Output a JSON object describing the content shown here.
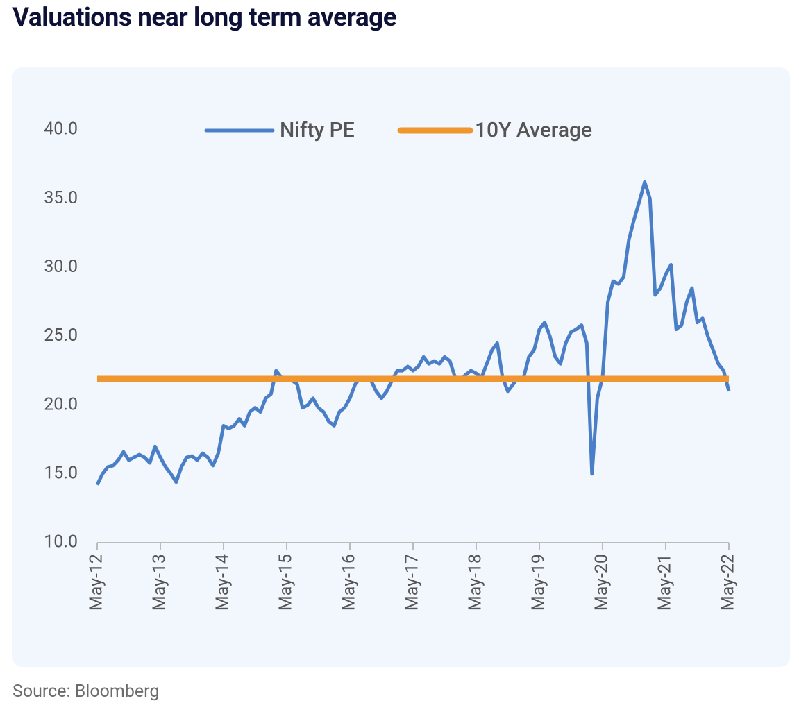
{
  "chart_data": {
    "type": "line",
    "title": "Valuations near long term average",
    "source": "Source: Bloomberg",
    "categories": [
      "May-12",
      null,
      null,
      null,
      null,
      null,
      null,
      null,
      null,
      null,
      null,
      null,
      "May-13",
      null,
      null,
      null,
      null,
      null,
      null,
      null,
      null,
      null,
      null,
      null,
      "May-14",
      null,
      null,
      null,
      null,
      null,
      null,
      null,
      null,
      null,
      null,
      null,
      "May-15",
      null,
      null,
      null,
      null,
      null,
      null,
      null,
      null,
      null,
      null,
      null,
      "May-16",
      null,
      null,
      null,
      null,
      null,
      null,
      null,
      null,
      null,
      null,
      null,
      "May-17",
      null,
      null,
      null,
      null,
      null,
      null,
      null,
      null,
      null,
      null,
      null,
      "May-18",
      null,
      null,
      null,
      null,
      null,
      null,
      null,
      null,
      null,
      null,
      null,
      "May-19",
      null,
      null,
      null,
      null,
      null,
      null,
      null,
      null,
      null,
      null,
      null,
      "May-20",
      null,
      null,
      null,
      null,
      null,
      null,
      null,
      null,
      null,
      null,
      null,
      "May-21",
      null,
      null,
      null,
      null,
      null,
      null,
      null,
      null,
      null,
      null,
      null,
      "May-22"
    ],
    "series": [
      {
        "name": "Nifty PE",
        "color": "#4a7fc7",
        "values": [
          14.2,
          15.0,
          15.5,
          15.6,
          16.0,
          16.6,
          16.0,
          16.2,
          16.4,
          16.2,
          15.8,
          17.0,
          16.2,
          15.5,
          15.0,
          14.4,
          15.5,
          16.2,
          16.3,
          16.0,
          16.5,
          16.2,
          15.6,
          16.5,
          18.5,
          18.3,
          18.5,
          19.0,
          18.5,
          19.5,
          19.8,
          19.5,
          20.5,
          20.8,
          22.5,
          22.0,
          22.0,
          21.8,
          21.5,
          19.8,
          20.0,
          20.5,
          19.8,
          19.5,
          18.8,
          18.5,
          19.5,
          19.8,
          20.5,
          21.5,
          22.0,
          22.0,
          21.8,
          21.0,
          20.5,
          21.0,
          21.8,
          22.5,
          22.5,
          22.8,
          22.5,
          22.8,
          23.5,
          23.0,
          23.2,
          23.0,
          23.5,
          23.2,
          22.0,
          21.8,
          22.2,
          22.5,
          22.3,
          22.0,
          23.0,
          24.0,
          24.5,
          22.0,
          21.0,
          21.5,
          22.0,
          22.0,
          23.5,
          24.0,
          25.5,
          26.0,
          25.0,
          23.5,
          23.0,
          24.5,
          25.3,
          25.5,
          25.8,
          24.5,
          15.0,
          20.5,
          22.0,
          27.5,
          29.0,
          28.8,
          29.3,
          32.0,
          33.5,
          34.8,
          36.2,
          35.0,
          28.0,
          28.5,
          29.5,
          30.2,
          25.5,
          25.8,
          27.5,
          28.5,
          26.0,
          26.3,
          25.0,
          24.0,
          23.0,
          22.5,
          21.0
        ]
      },
      {
        "name": "10Y Average",
        "color": "#f0962e",
        "values": [
          21.9,
          21.9,
          21.9,
          21.9,
          21.9,
          21.9,
          21.9,
          21.9,
          21.9,
          21.9,
          21.9,
          21.9,
          21.9,
          21.9,
          21.9,
          21.9,
          21.9,
          21.9,
          21.9,
          21.9,
          21.9,
          21.9,
          21.9,
          21.9,
          21.9,
          21.9,
          21.9,
          21.9,
          21.9,
          21.9,
          21.9,
          21.9,
          21.9,
          21.9,
          21.9,
          21.9,
          21.9,
          21.9,
          21.9,
          21.9,
          21.9,
          21.9,
          21.9,
          21.9,
          21.9,
          21.9,
          21.9,
          21.9,
          21.9,
          21.9,
          21.9,
          21.9,
          21.9,
          21.9,
          21.9,
          21.9,
          21.9,
          21.9,
          21.9,
          21.9,
          21.9,
          21.9,
          21.9,
          21.9,
          21.9,
          21.9,
          21.9,
          21.9,
          21.9,
          21.9,
          21.9,
          21.9,
          21.9,
          21.9,
          21.9,
          21.9,
          21.9,
          21.9,
          21.9,
          21.9,
          21.9,
          21.9,
          21.9,
          21.9,
          21.9,
          21.9,
          21.9,
          21.9,
          21.9,
          21.9,
          21.9,
          21.9,
          21.9,
          21.9,
          21.9,
          21.9,
          21.9,
          21.9,
          21.9,
          21.9,
          21.9,
          21.9,
          21.9,
          21.9,
          21.9,
          21.9,
          21.9,
          21.9,
          21.9,
          21.9,
          21.9,
          21.9,
          21.9,
          21.9,
          21.9,
          21.9,
          21.9,
          21.9,
          21.9,
          21.9,
          21.9
        ]
      }
    ],
    "ylim": [
      10,
      40
    ],
    "yticks": [
      {
        "value": 10,
        "label": "10.0"
      },
      {
        "value": 15,
        "label": "15.0"
      },
      {
        "value": 20,
        "label": "20.0"
      },
      {
        "value": 25,
        "label": "25.0"
      },
      {
        "value": 30,
        "label": "30.0"
      },
      {
        "value": 35,
        "label": "35.0"
      },
      {
        "value": 40,
        "label": "40.0"
      }
    ],
    "grid": false,
    "legend": "top"
  }
}
